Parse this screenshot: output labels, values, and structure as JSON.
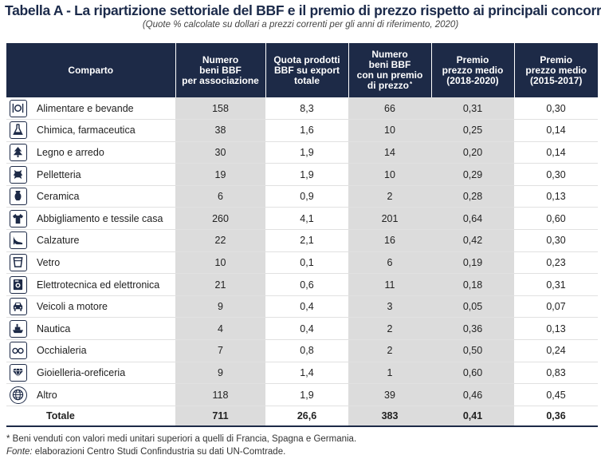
{
  "title": "Tabella A - La ripartizione settoriale del BBF e il premio di prezzo rispetto ai principali concorrenti",
  "subtitle": "(Quote % calcolate su dollari a prezzi correnti per gli anni di riferimento, 2020)",
  "headers": {
    "comparto": "Comparto",
    "numero": [
      "Numero",
      "beni BBF",
      "per associazione"
    ],
    "quota": [
      "Quota prodotti",
      "BBF su export",
      "totale"
    ],
    "premio_n": [
      "Numero",
      "beni BBF",
      "con un premio",
      "di prezzo"
    ],
    "premio_n_star": "*",
    "premio_1820": [
      "Premio",
      "prezzo medio",
      "(2018-2020)"
    ],
    "premio_1517": [
      "Premio",
      "prezzo medio",
      "(2015-2017)"
    ]
  },
  "rows": [
    {
      "icon": "plate-cutlery-icon",
      "name": "Alimentare e bevande",
      "numero": "158",
      "quota": "8,3",
      "premio_n": "66",
      "p1820": "0,31",
      "p1517": "0,30"
    },
    {
      "icon": "flask-icon",
      "name": "Chimica, farmaceutica",
      "numero": "38",
      "quota": "1,6",
      "premio_n": "10",
      "p1820": "0,25",
      "p1517": "0,14"
    },
    {
      "icon": "tree-icon",
      "name": "Legno e arredo",
      "numero": "30",
      "quota": "1,9",
      "premio_n": "14",
      "p1820": "0,20",
      "p1517": "0,14"
    },
    {
      "icon": "leather-hide-icon",
      "name": "Pelletteria",
      "numero": "19",
      "quota": "1,9",
      "premio_n": "10",
      "p1820": "0,29",
      "p1517": "0,30"
    },
    {
      "icon": "vase-icon",
      "name": "Ceramica",
      "numero": "6",
      "quota": "0,9",
      "premio_n": "2",
      "p1820": "0,28",
      "p1517": "0,13"
    },
    {
      "icon": "tshirt-icon",
      "name": "Abbigliamento e tessile casa",
      "numero": "260",
      "quota": "4,1",
      "premio_n": "201",
      "p1820": "0,64",
      "p1517": "0,60"
    },
    {
      "icon": "high-heel-icon",
      "name": "Calzature",
      "numero": "22",
      "quota": "2,1",
      "premio_n": "16",
      "p1820": "0,42",
      "p1517": "0,30"
    },
    {
      "icon": "glass-icon",
      "name": "Vetro",
      "numero": "10",
      "quota": "0,1",
      "premio_n": "6",
      "p1820": "0,19",
      "p1517": "0,23"
    },
    {
      "icon": "appliance-icon",
      "name": "Elettrotecnica ed elettronica",
      "numero": "21",
      "quota": "0,6",
      "premio_n": "11",
      "p1820": "0,18",
      "p1517": "0,31"
    },
    {
      "icon": "car-icon",
      "name": "Veicoli a motore",
      "numero": "9",
      "quota": "0,4",
      "premio_n": "3",
      "p1820": "0,05",
      "p1517": "0,07"
    },
    {
      "icon": "ship-icon",
      "name": "Nautica",
      "numero": "4",
      "quota": "0,4",
      "premio_n": "2",
      "p1820": "0,36",
      "p1517": "0,13"
    },
    {
      "icon": "eyeglasses-icon",
      "name": "Occhialeria",
      "numero": "7",
      "quota": "0,8",
      "premio_n": "2",
      "p1820": "0,50",
      "p1517": "0,24"
    },
    {
      "icon": "diamond-icon",
      "name": "Gioielleria-oreficeria",
      "numero": "9",
      "quota": "1,4",
      "premio_n": "1",
      "p1820": "0,60",
      "p1517": "0,83"
    },
    {
      "icon": "globe-icon",
      "name": "Altro",
      "numero": "118",
      "quota": "1,9",
      "premio_n": "39",
      "p1820": "0,46",
      "p1517": "0,45"
    }
  ],
  "total": {
    "name": "Totale",
    "numero": "711",
    "quota": "26,6",
    "premio_n": "383",
    "p1820": "0,41",
    "p1517": "0,36"
  },
  "note": "* Beni venduti con valori medi unitari superiori a quelli di Francia, Spagna e Germania.",
  "source_label": "Fonte:",
  "source_text": " elaborazioni Centro Studi Confindustria su dati UN-Comtrade.",
  "colors": {
    "header_bg": "#1d2a47",
    "shade": "#dcdcdc",
    "title": "#1b2a4a"
  }
}
